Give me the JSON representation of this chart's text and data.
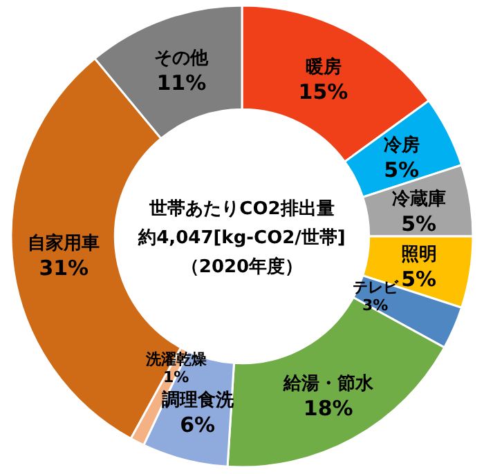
{
  "chart_data": {
    "type": "donut",
    "categories": [
      "暖房",
      "冷房",
      "冷蔵庫",
      "照明",
      "テレビ",
      "給湯・節水",
      "調理食洗",
      "洗濯乾燥",
      "自家用車",
      "その他"
    ],
    "values": [
      15,
      5,
      5,
      5,
      3,
      18,
      6,
      1,
      31,
      11
    ],
    "colors": [
      "#f0401a",
      "#00b0f0",
      "#a5a5a5",
      "#ffc000",
      "#4f87c2",
      "#70ad47",
      "#8faadc",
      "#f4b183",
      "#cf6a17",
      "#7f7f7f"
    ],
    "value_labels": [
      "15%",
      "5%",
      "5%",
      "5%",
      "3%",
      "18%",
      "6%",
      "1%",
      "31%",
      "11%"
    ],
    "annotations": [
      "世帯あたりCO2排出量",
      "約4,047[kg-CO2/世帯]",
      "（2020年度）"
    ]
  }
}
